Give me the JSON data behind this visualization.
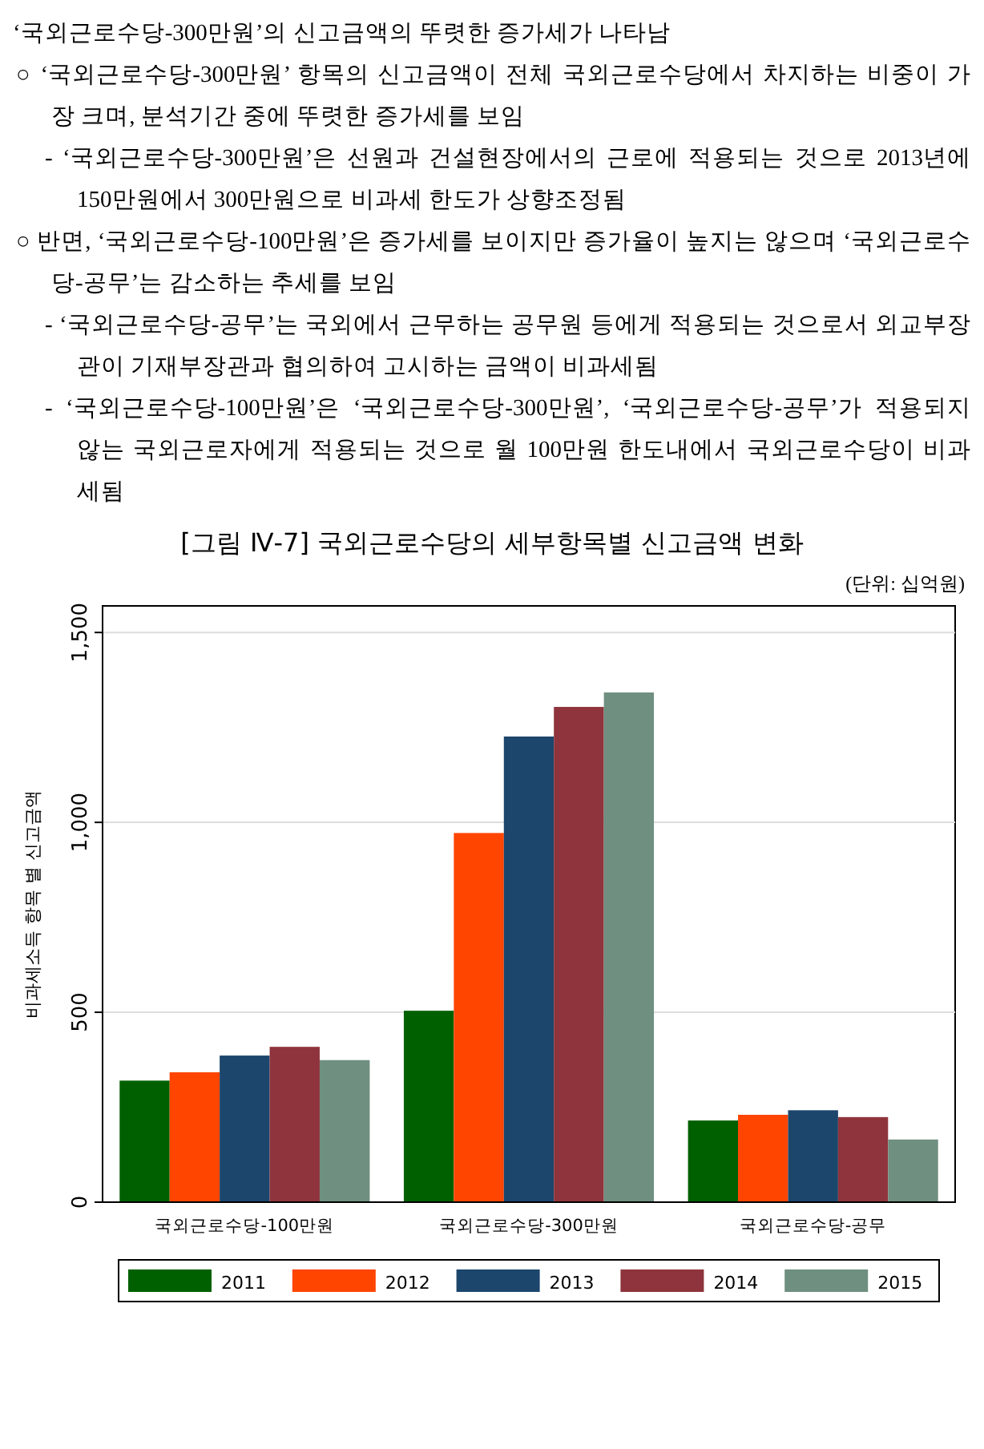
{
  "chart_data": {
    "type": "bar",
    "title": "[그림 Ⅳ-7] 국외근로수당의 세부항목별 신고금액 변화",
    "subtitle": "(단위: 십억원)",
    "ylabel": "비과세소득 항목 별 신고금액",
    "annotations": [
      "‘국외근로수당-300만원’의 신고금액의 뚜렷한 증가세가 나타남",
      "○ ‘국외근로수당-300만원’ 항목의 신고금액이 전체 국외근로수당에서 차지하는 비중이 가장 크며, 분석기간 중에 뚜렷한 증가세를 보임",
      "- ‘국외근로수당-300만원’은 선원과 건설현장에서의 근로에 적용되는 것으로 2013년에 150만원에서 300만원으로 비과세 한도가 상향조정됨",
      "○ 반면, ‘국외근로수당-100만원’은 증가세를 보이지만 증가율이 높지는 않으며 ‘국외근로수당-공무’는 감소하는 추세를 보임",
      "- ‘국외근로수당-공무’는 국외에서 근무하는 공무원 등에게 적용되는 것으로서 외교부장관이 기재부장관과 협의하여 고시하는 금액이 비과세됨",
      "- ‘국외근로수당-100만원’은 ‘국외근로수당-300만원’, ‘국외근로수당-공무’가 적용되지 않는 국외근로자에게 적용되는 것으로 월 100만원 한도내에서 국외근로수당이 비과세됨"
    ],
    "categories": [
      "국외근로수당-100만원",
      "국외근로수당-300만원",
      "국외근로수당-공무"
    ],
    "series": [
      {
        "name": "2011",
        "color": "#006000",
        "values": [
          320,
          504,
          215
        ]
      },
      {
        "name": "2012",
        "color": "#ff4500",
        "values": [
          342,
          972,
          230
        ]
      },
      {
        "name": "2013",
        "color": "#1c466c",
        "values": [
          386,
          1226,
          242
        ]
      },
      {
        "name": "2014",
        "color": "#8f343c",
        "values": [
          409,
          1304,
          224
        ]
      },
      {
        "name": "2015",
        "color": "#6f8f80",
        "values": [
          374,
          1342,
          165
        ]
      }
    ],
    "ylim": [
      0,
      1570
    ],
    "yticks": [
      0,
      500,
      {
        "value": 1000,
        "label": "1,000"
      },
      {
        "value": 1500,
        "label": "1,500"
      }
    ],
    "grid": "y",
    "legend": "bottom"
  }
}
